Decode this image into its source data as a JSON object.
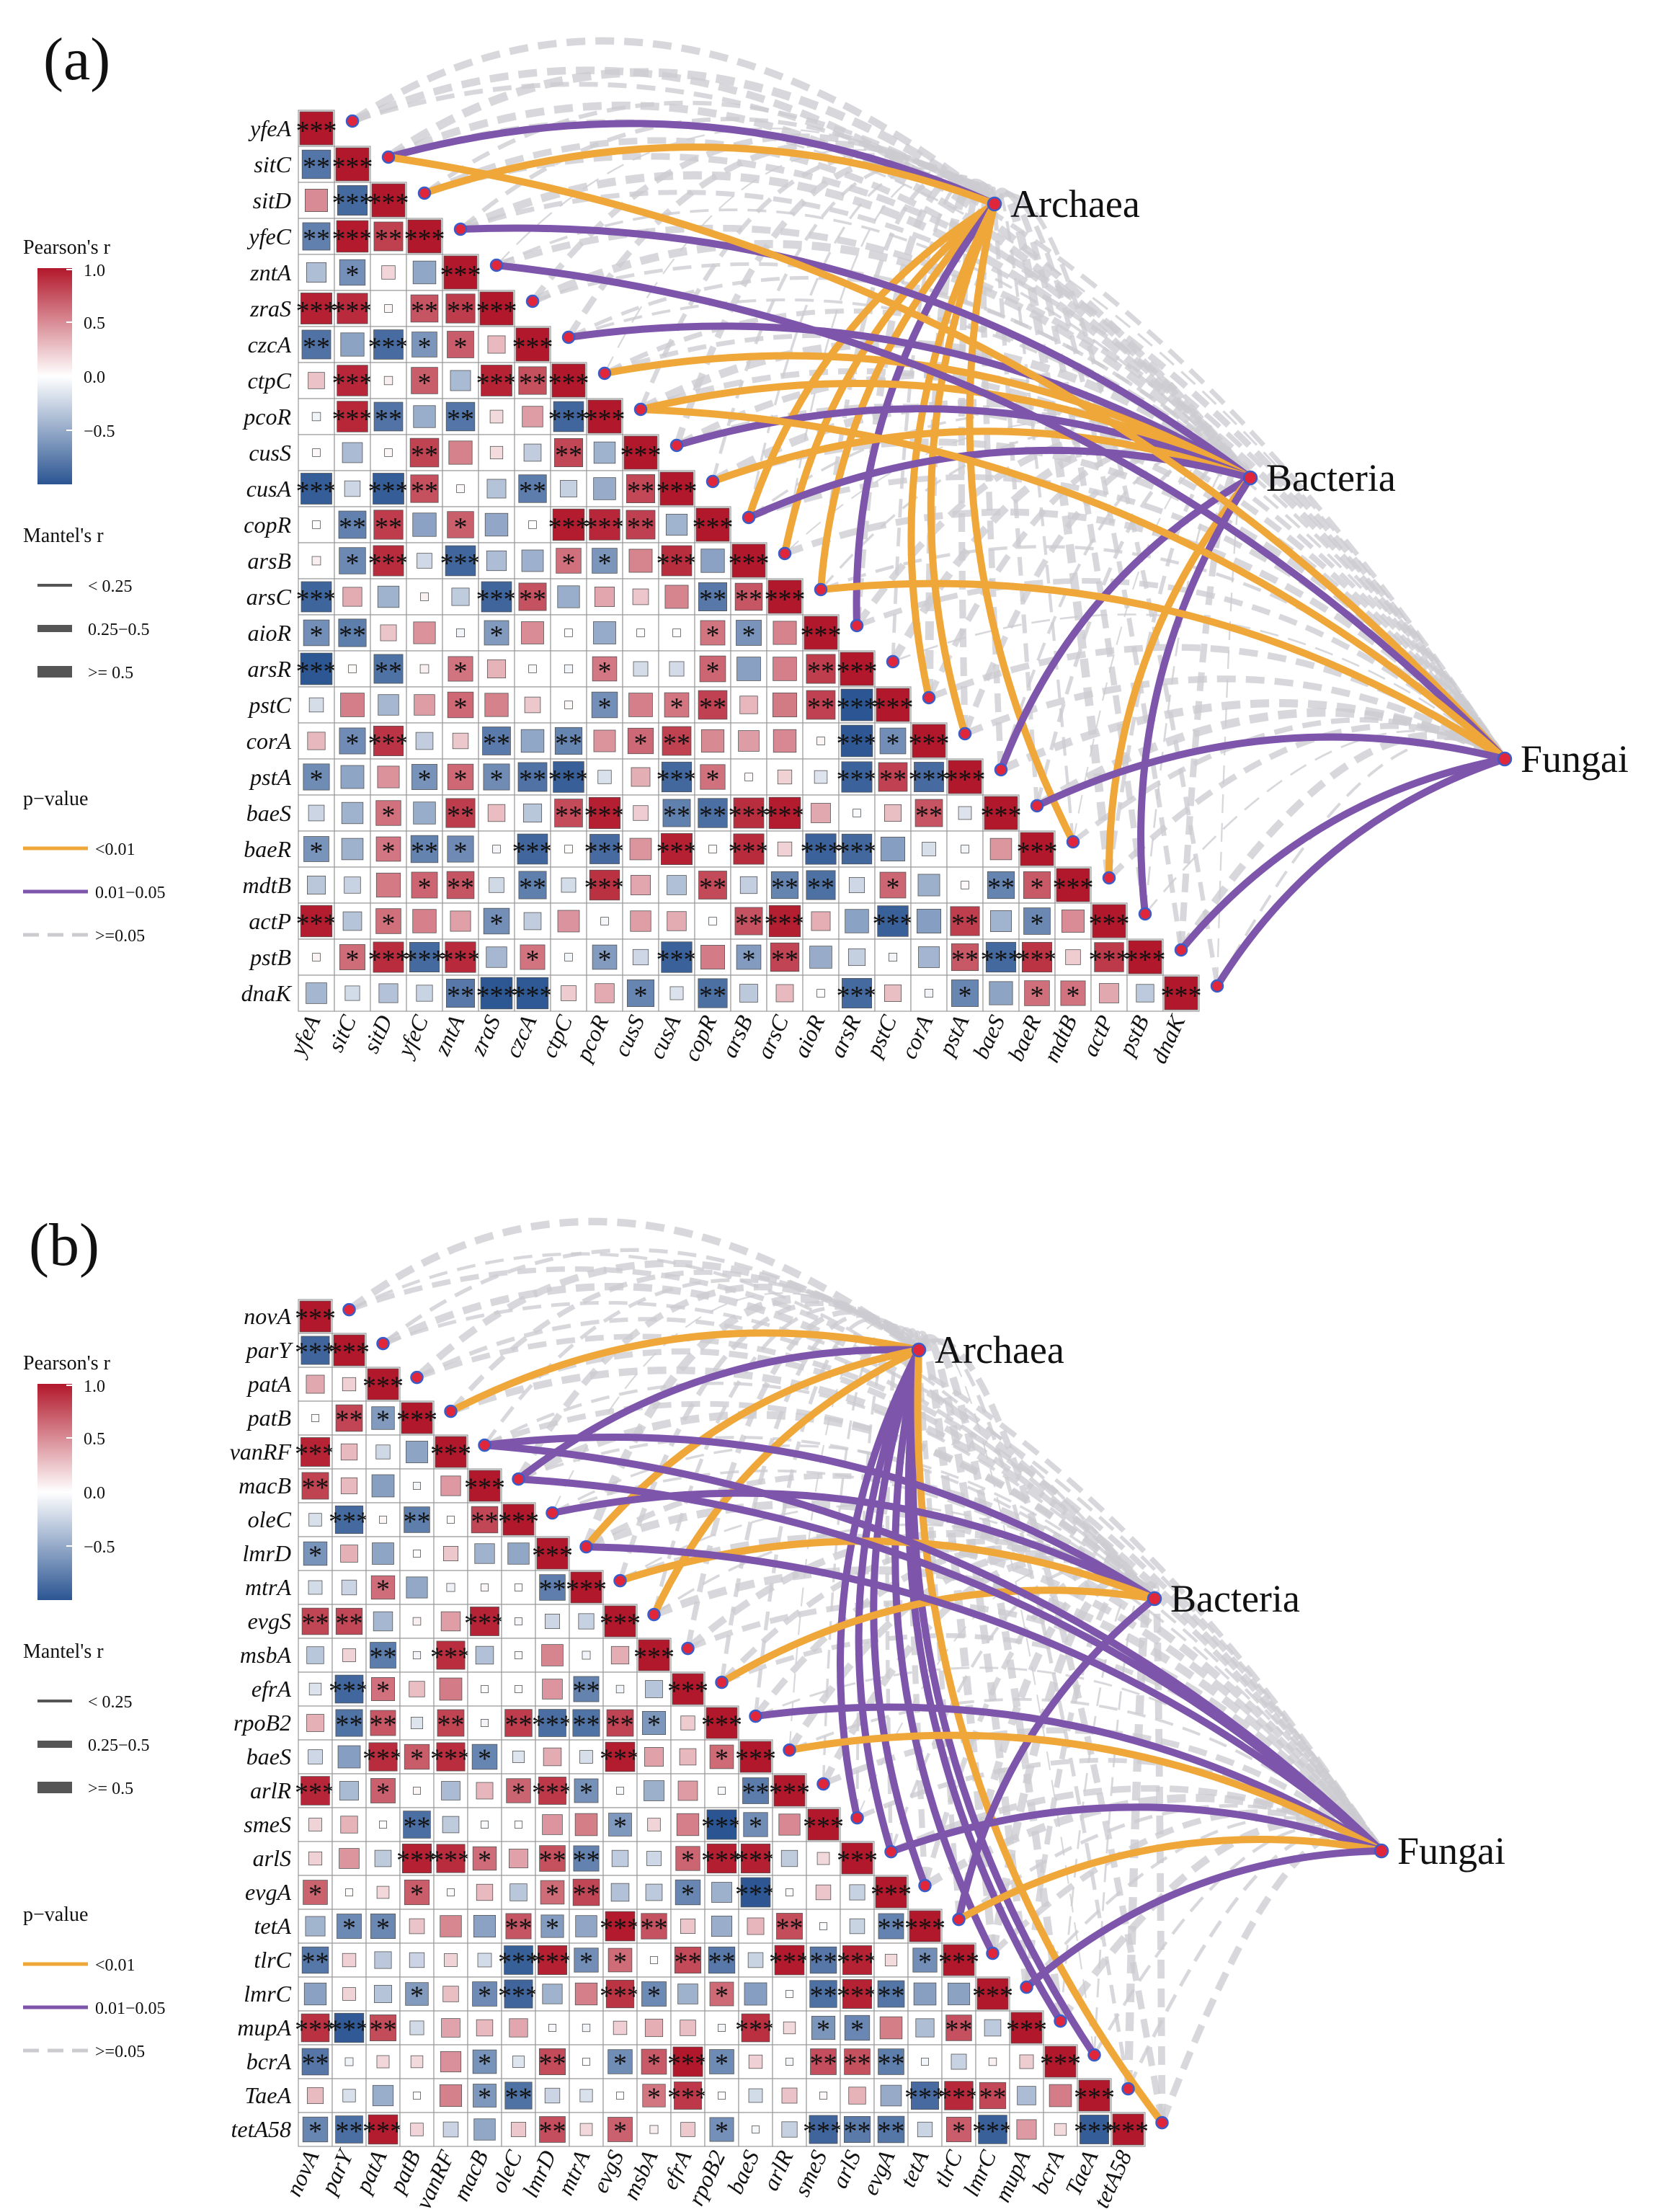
{
  "colors": {
    "positive": "#b2182b",
    "negative": "#2b5592",
    "neutral": "#ffffff",
    "p_lt_001": "#efa73a",
    "p_001_005": "#7d55ab",
    "p_ge_005": "#cbcbd0",
    "node": "#e0263a",
    "node_edge": "#3a5cc8"
  },
  "legend": {
    "pearson_title": "Pearson's r",
    "pearson_ticks": [
      "1.0",
      "0.5",
      "0.0",
      "−0.5"
    ],
    "mantel_title": "Mantel's r",
    "mantel_items": [
      "< 0.25",
      "0.25−0.5",
      ">= 0.5"
    ],
    "p_title": "p−value",
    "p_items": [
      "<0.01",
      "0.01−0.05",
      ">=0.05"
    ]
  },
  "chart_data": [
    {
      "type": "heatmap",
      "panel_label": "(a)",
      "title": "",
      "matrix_layout": "lower-triangle correlation matrix with Mantel test links",
      "genes": [
        "yfeA",
        "sitC",
        "sitD",
        "yfeC",
        "zntA",
        "zraS",
        "czcA",
        "ctpC",
        "pcoR",
        "cusS",
        "cusA",
        "copR",
        "arsB",
        "arsC",
        "aioR",
        "arsR",
        "pstC",
        "corA",
        "pstA",
        "baeS",
        "baeR",
        "mdtB",
        "actP",
        "pstB",
        "dnaK"
      ],
      "groups": [
        "Archaea",
        "Bacteria",
        "Fungai"
      ],
      "pearson_r_range": [
        -1.0,
        1.0
      ],
      "links": [
        {
          "from": "Archaea",
          "to": "sitC",
          "p": "0.01-0.05",
          "r": ">= 0.5"
        },
        {
          "from": "Archaea",
          "to": "sitD",
          "p": "<0.01",
          "r": ">= 0.5"
        },
        {
          "from": "Archaea",
          "to": "copR",
          "p": "<0.01",
          "r": ">= 0.5"
        },
        {
          "from": "Archaea",
          "to": "arsB",
          "p": "<0.01",
          "r": ">= 0.5"
        },
        {
          "from": "Archaea",
          "to": "arsC",
          "p": "<0.01",
          "r": ">= 0.5"
        },
        {
          "from": "Archaea",
          "to": "aioR",
          "p": "0.01-0.05",
          "r": ">= 0.5"
        },
        {
          "from": "Archaea",
          "to": "pstC",
          "p": "<0.01",
          "r": ">= 0.5"
        },
        {
          "from": "Archaea",
          "to": "corA",
          "p": "<0.01",
          "r": ">= 0.5"
        },
        {
          "from": "Archaea",
          "to": "baeR",
          "p": "<0.01",
          "r": ">= 0.5"
        },
        {
          "from": "Bacteria",
          "to": "yfeC",
          "p": "0.01-0.05",
          "r": ">= 0.5"
        },
        {
          "from": "Bacteria",
          "to": "czcA",
          "p": "0.01-0.05",
          "r": ">= 0.5"
        },
        {
          "from": "Bacteria",
          "to": "ctpC",
          "p": "<0.01",
          "r": ">= 0.5"
        },
        {
          "from": "Bacteria",
          "to": "pcoR",
          "p": "<0.01",
          "r": ">= 0.5"
        },
        {
          "from": "Bacteria",
          "to": "cusS",
          "p": "0.01-0.05",
          "r": ">= 0.5"
        },
        {
          "from": "Bacteria",
          "to": "cusA",
          "p": "<0.01",
          "r": ">= 0.5"
        },
        {
          "from": "Bacteria",
          "to": "copR",
          "p": "0.01-0.05",
          "r": ">= 0.5"
        },
        {
          "from": "Bacteria",
          "to": "pstA",
          "p": "0.01-0.05",
          "r": ">= 0.5"
        },
        {
          "from": "Bacteria",
          "to": "mdtB",
          "p": "<0.01",
          "r": ">= 0.5"
        },
        {
          "from": "Bacteria",
          "to": "actP",
          "p": "0.01-0.05",
          "r": ">= 0.5"
        },
        {
          "from": "Fungai",
          "to": "sitC",
          "p": "<0.01",
          "r": ">= 0.5"
        },
        {
          "from": "Fungai",
          "to": "zntA",
          "p": "0.01-0.05",
          "r": ">= 0.5"
        },
        {
          "from": "Fungai",
          "to": "pcoR",
          "p": "<0.01",
          "r": ">= 0.5"
        },
        {
          "from": "Fungai",
          "to": "arsC",
          "p": "<0.01",
          "r": ">= 0.5"
        },
        {
          "from": "Fungai",
          "to": "baeS",
          "p": "0.01-0.05",
          "r": ">= 0.5"
        },
        {
          "from": "Fungai",
          "to": "pstB",
          "p": "0.01-0.05",
          "r": ">= 0.5"
        },
        {
          "from": "Fungai",
          "to": "dnaK",
          "p": "0.01-0.05",
          "r": ">= 0.5"
        }
      ]
    },
    {
      "type": "heatmap",
      "panel_label": "(b)",
      "title": "",
      "matrix_layout": "lower-triangle correlation matrix with Mantel test links",
      "genes": [
        "novA",
        "parY",
        "patA",
        "patB",
        "vanRF",
        "macB",
        "oleC",
        "lmrD",
        "mtrA",
        "evgS",
        "msbA",
        "efrA",
        "rpoB2",
        "baeS",
        "arlR",
        "smeS",
        "arlS",
        "evgA",
        "tetA",
        "tlrC",
        "lmrC",
        "mupA",
        "bcrA",
        "TaeA",
        "tetA58"
      ],
      "groups": [
        "Archaea",
        "Bacteria",
        "Fungai"
      ],
      "pearson_r_range": [
        -1.0,
        1.0
      ],
      "links": [
        {
          "from": "Archaea",
          "to": "patB",
          "p": "<0.01",
          "r": ">= 0.5"
        },
        {
          "from": "Archaea",
          "to": "macB",
          "p": "0.01-0.05",
          "r": ">= 0.5"
        },
        {
          "from": "Archaea",
          "to": "lmrD",
          "p": "<0.01",
          "r": ">= 0.5"
        },
        {
          "from": "Archaea",
          "to": "evgS",
          "p": "<0.01",
          "r": ">= 0.5"
        },
        {
          "from": "Archaea",
          "to": "smeS",
          "p": "0.01-0.05",
          "r": ">= 0.5"
        },
        {
          "from": "Archaea",
          "to": "arlS",
          "p": "0.01-0.05",
          "r": ">= 0.5"
        },
        {
          "from": "Archaea",
          "to": "evgA",
          "p": "0.01-0.05",
          "r": ">= 0.5"
        },
        {
          "from": "Archaea",
          "to": "tlrC",
          "p": "0.01-0.05",
          "r": ">= 0.5"
        },
        {
          "from": "Archaea",
          "to": "mupA",
          "p": "0.01-0.05",
          "r": ">= 0.5"
        },
        {
          "from": "Archaea",
          "to": "bcrA",
          "p": "0.01-0.05",
          "r": ">= 0.5"
        },
        {
          "from": "Archaea",
          "to": "tetA58",
          "p": "<0.01",
          "r": ">= 0.5"
        },
        {
          "from": "Bacteria",
          "to": "vanRF",
          "p": "0.01-0.05",
          "r": ">= 0.5"
        },
        {
          "from": "Bacteria",
          "to": "oleC",
          "p": "0.01-0.05",
          "r": ">= 0.5"
        },
        {
          "from": "Bacteria",
          "to": "mtrA",
          "p": "<0.01",
          "r": ">= 0.5"
        },
        {
          "from": "Bacteria",
          "to": "efrA",
          "p": "<0.01",
          "r": ">= 0.5"
        },
        {
          "from": "Bacteria",
          "to": "tetA",
          "p": "0.01-0.05",
          "r": ">= 0.5"
        },
        {
          "from": "Fungai",
          "to": "vanRF",
          "p": "0.01-0.05",
          "r": ">= 0.5"
        },
        {
          "from": "Fungai",
          "to": "macB",
          "p": "0.01-0.05",
          "r": ">= 0.5"
        },
        {
          "from": "Fungai",
          "to": "lmrD",
          "p": "0.01-0.05",
          "r": ">= 0.5"
        },
        {
          "from": "Fungai",
          "to": "rpoB2",
          "p": "0.01-0.05",
          "r": ">= 0.5"
        },
        {
          "from": "Fungai",
          "to": "baeS",
          "p": "<0.01",
          "r": ">= 0.5"
        },
        {
          "from": "Fungai",
          "to": "arlS",
          "p": "0.01-0.05",
          "r": ">= 0.5"
        },
        {
          "from": "Fungai",
          "to": "tetA",
          "p": "<0.01",
          "r": ">= 0.5"
        },
        {
          "from": "Fungai",
          "to": "lmrC",
          "p": "0.01-0.05",
          "r": ">= 0.5"
        }
      ]
    }
  ]
}
